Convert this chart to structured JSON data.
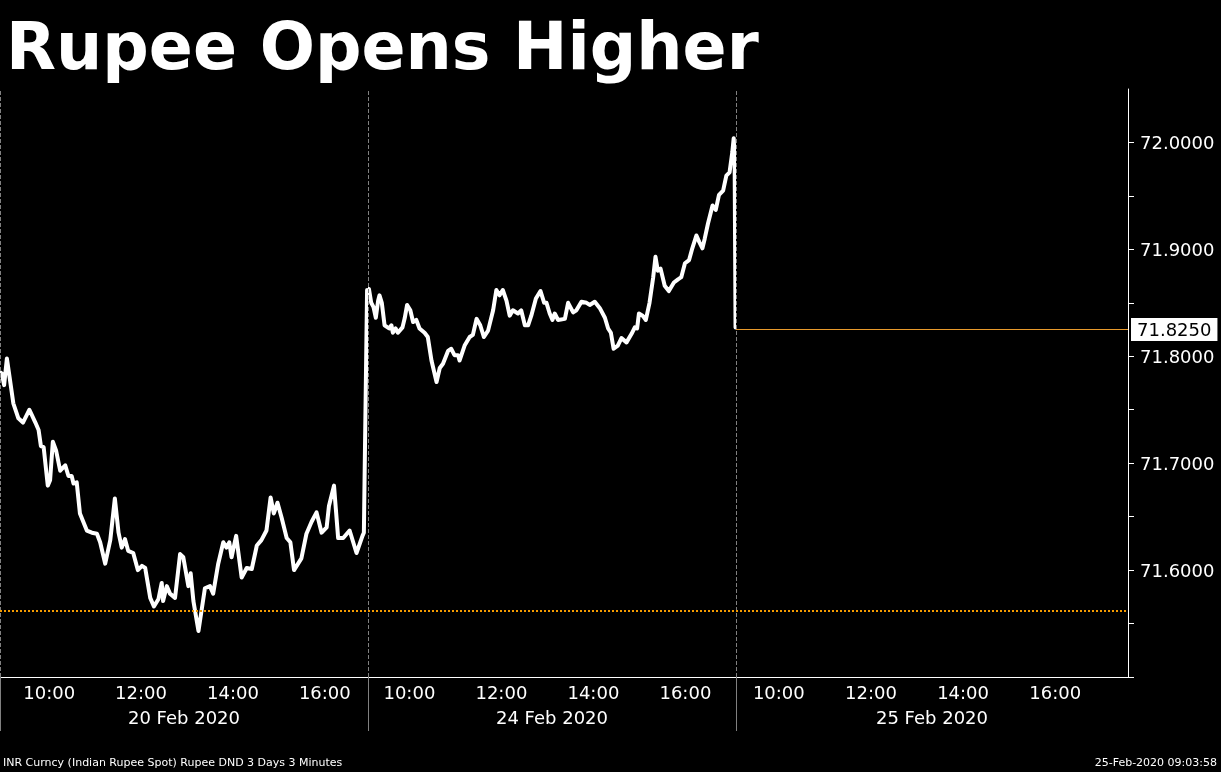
{
  "chart_data": [
    {
      "type": "line",
      "title": "Rupee Opens Higher",
      "annotations": [
        "INR Curncy (Indian Rupee Spot) Rupee DND 3 Days 3 Minutes",
        "25-Feb-2020 09:03:58"
      ],
      "xlabel": "20 Feb 2020",
      "color": "#ffffff",
      "marker": "none",
      "tick_labels": "x",
      "xlim": [
        8.93,
        16.94
      ],
      "xticks": [
        {
          "value": 8.93,
          "label": null
        },
        {
          "value": 10,
          "label": "10:00"
        },
        {
          "value": 12,
          "label": "12:00"
        },
        {
          "value": 14,
          "label": "14:00"
        },
        {
          "value": 16,
          "label": "16:00"
        }
      ],
      "ylim": [
        71.5,
        72.05
      ],
      "x": [
        8.93,
        8.97,
        9.02,
        9.08,
        9.14,
        9.22,
        9.33,
        9.43,
        9.57,
        9.7,
        9.77,
        9.82,
        9.88,
        9.97,
        10.02,
        10.08,
        10.15,
        10.24,
        10.35,
        10.42,
        10.49,
        10.53,
        10.6,
        10.67,
        10.82,
        10.93,
        11.04,
        11.11,
        11.22,
        11.33,
        11.43,
        11.51,
        11.58,
        11.65,
        11.72,
        11.83,
        11.93,
        12.02,
        12.09,
        12.2,
        12.28,
        12.38,
        12.45,
        12.48,
        12.56,
        12.63,
        12.74,
        12.85,
        12.92,
        13.03,
        13.08,
        13.14,
        13.25,
        13.39,
        13.5,
        13.57,
        13.68,
        13.79,
        13.86,
        13.92,
        13.97,
        14.07,
        14.19,
        14.3,
        14.41,
        14.52,
        14.62,
        14.73,
        14.82,
        14.89,
        14.97,
        15.06,
        15.17,
        15.25,
        15.33,
        15.49,
        15.6,
        15.71,
        15.82,
        15.93,
        16.04,
        16.09,
        16.2,
        16.29,
        16.4,
        16.54,
        16.69,
        16.82,
        16.85,
        16.92
      ],
      "values": [
        71.785,
        71.784,
        71.773,
        71.798,
        71.78,
        71.756,
        71.742,
        71.738,
        71.75,
        71.738,
        71.731,
        71.716,
        71.715,
        71.679,
        71.684,
        71.72,
        71.712,
        71.693,
        71.698,
        71.688,
        71.688,
        71.681,
        71.682,
        71.653,
        71.637,
        71.635,
        71.634,
        71.626,
        71.606,
        71.628,
        71.667,
        71.635,
        71.621,
        71.629,
        71.618,
        71.616,
        71.6,
        71.604,
        71.602,
        71.574,
        71.566,
        71.573,
        71.588,
        71.571,
        71.585,
        71.578,
        71.574,
        71.615,
        71.612,
        71.585,
        71.597,
        71.571,
        71.543,
        71.583,
        71.585,
        71.578,
        71.606,
        71.626,
        71.621,
        71.626,
        71.612,
        71.632,
        71.593,
        71.602,
        71.601,
        71.623,
        71.628,
        71.637,
        71.668,
        71.653,
        71.663,
        71.649,
        71.63,
        71.626,
        71.6,
        71.611,
        71.634,
        71.645,
        71.654,
        71.635,
        71.64,
        71.66,
        71.679,
        71.63,
        71.63,
        71.637,
        71.616,
        71.632,
        71.635,
        71.862
      ],
      "ref_lines": [
        {
          "axis": "x",
          "value": 8.93,
          "label": null,
          "color": "#808080",
          "line_style": "dashed"
        },
        {
          "axis": "y",
          "value": 71.562,
          "label": null,
          "color": "#f59b00",
          "line_style": "dotted"
        }
      ]
    },
    {
      "type": "line",
      "xlabel": "24 Feb 2020",
      "color": "#ffffff",
      "marker": "none",
      "tick_labels": "x",
      "xlim": [
        9.1,
        17.1
      ],
      "xticks": [
        {
          "value": 9.1,
          "label": null
        },
        {
          "value": 10,
          "label": "10:00"
        },
        {
          "value": 12,
          "label": "12:00"
        },
        {
          "value": 14,
          "label": "14:00"
        },
        {
          "value": 16,
          "label": "16:00"
        }
      ],
      "ylim": [
        71.5,
        72.05
      ],
      "x": [
        9.12,
        9.17,
        9.22,
        9.27,
        9.32,
        9.35,
        9.4,
        9.46,
        9.56,
        9.61,
        9.64,
        9.7,
        9.75,
        9.85,
        9.9,
        9.95,
        10.02,
        10.08,
        10.15,
        10.22,
        10.33,
        10.4,
        10.48,
        10.59,
        10.66,
        10.73,
        10.84,
        10.91,
        10.98,
        11.06,
        11.09,
        11.2,
        11.31,
        11.38,
        11.46,
        11.54,
        11.62,
        11.71,
        11.82,
        11.89,
        11.96,
        12.03,
        12.11,
        12.18,
        12.25,
        12.36,
        12.43,
        12.51,
        12.58,
        12.65,
        12.75,
        12.85,
        12.93,
        12.98,
        13.05,
        13.11,
        13.16,
        13.23,
        13.38,
        13.45,
        13.56,
        13.63,
        13.74,
        13.85,
        13.92,
        14.03,
        14.14,
        14.25,
        14.32,
        14.38,
        14.44,
        14.53,
        14.61,
        14.72,
        14.83,
        14.9,
        14.95,
        14.99,
        15.07,
        15.14,
        15.22,
        15.3,
        15.35,
        15.4,
        15.46,
        15.55,
        15.64,
        15.75,
        15.84,
        15.91,
        15.99,
        16.08,
        16.15,
        16.24,
        16.3,
        16.37,
        16.42,
        16.49,
        16.59,
        16.66,
        16.73,
        16.82,
        16.89,
        16.96,
        17.02,
        17.05,
        17.07,
        17.09
      ],
      "values": [
        71.863,
        71.85,
        71.846,
        71.836,
        71.852,
        71.857,
        71.85,
        71.829,
        71.826,
        71.829,
        71.822,
        71.826,
        71.822,
        71.827,
        71.836,
        71.848,
        71.843,
        71.832,
        71.834,
        71.826,
        71.822,
        71.818,
        71.796,
        71.776,
        71.789,
        71.793,
        71.805,
        71.807,
        71.801,
        71.801,
        71.796,
        71.81,
        71.818,
        71.82,
        71.835,
        71.829,
        71.818,
        71.824,
        71.843,
        71.862,
        71.857,
        71.862,
        71.852,
        71.838,
        71.843,
        71.84,
        71.843,
        71.829,
        71.829,
        71.838,
        71.854,
        71.861,
        71.85,
        71.85,
        71.84,
        71.834,
        71.84,
        71.834,
        71.835,
        71.85,
        71.841,
        71.843,
        71.851,
        71.85,
        71.848,
        71.851,
        71.845,
        71.836,
        71.826,
        71.822,
        71.807,
        71.81,
        71.817,
        71.813,
        71.821,
        71.827,
        71.826,
        71.84,
        71.838,
        71.834,
        71.85,
        71.874,
        71.893,
        71.88,
        71.882,
        71.866,
        71.861,
        71.869,
        71.872,
        71.874,
        71.887,
        71.89,
        71.901,
        71.913,
        71.907,
        71.901,
        71.91,
        71.924,
        71.941,
        71.937,
        71.951,
        71.955,
        71.969,
        71.972,
        71.991,
        72.004,
        71.986,
        71.827
      ],
      "ref_lines": [
        {
          "axis": "x",
          "value": 9.1,
          "label": null,
          "color": "#808080",
          "line_style": "dashed"
        },
        {
          "axis": "y",
          "value": 71.562,
          "label": null,
          "color": "#f59b00",
          "line_style": "dotted"
        }
      ]
    },
    {
      "type": "line",
      "xlabel": "25 Feb 2020",
      "xlim": [
        9.07,
        17.58
      ],
      "xticks": [
        {
          "value": 9.07,
          "label": null
        },
        {
          "value": 10,
          "label": "10:00"
        },
        {
          "value": 12,
          "label": "12:00"
        },
        {
          "value": 14,
          "label": "14:00"
        },
        {
          "value": 16,
          "label": "16:00"
        }
      ],
      "ylim": [
        71.5,
        72.05
      ],
      "yticks": [
        {
          "value": 71.5,
          "label": null
        },
        {
          "value": 71.55,
          "label": null
        },
        {
          "value": 71.6,
          "label": "71.6000"
        },
        {
          "value": 71.65,
          "label": null
        },
        {
          "value": 71.7,
          "label": "71.7000"
        },
        {
          "value": 71.75,
          "label": null
        },
        {
          "value": 71.8,
          "label": "71.8000"
        },
        {
          "value": 71.85,
          "label": null
        },
        {
          "value": 71.9,
          "label": "71.9000"
        },
        {
          "value": 71.95,
          "label": null
        },
        {
          "value": 72,
          "label": "72.0000"
        }
      ],
      "ref_lines": [
        {
          "axis": "x",
          "value": 9.07,
          "label": null,
          "color": "#808080",
          "line_style": "dashed"
        },
        {
          "axis": "y",
          "value": 71.562,
          "label": null,
          "color": "#f59b00",
          "line_style": "dotted"
        },
        {
          "axis": "y",
          "value": 71.825,
          "label": "71.8250",
          "color": "#e89a2c",
          "line_style": "solid"
        }
      ]
    }
  ]
}
